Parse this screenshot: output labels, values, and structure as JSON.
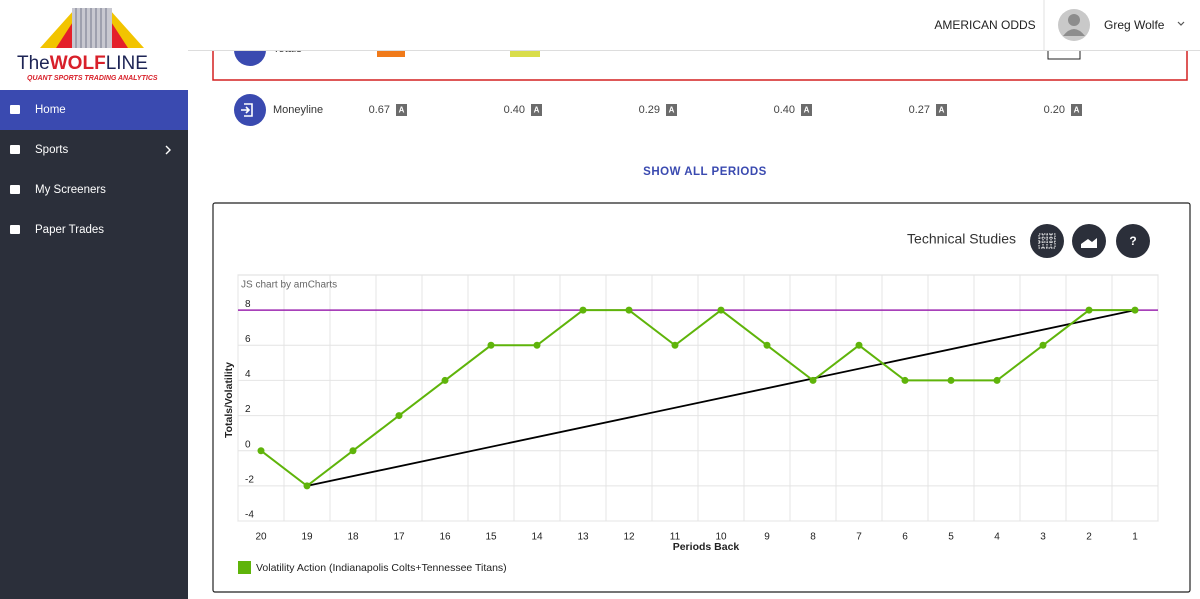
{
  "logo": {
    "prefix": "The",
    "brand": "WOLF",
    "suffix": "LINE",
    "tagline": "QUANT SPORTS TRADING ANALYTICS"
  },
  "sidebar": {
    "items": [
      {
        "label": "Home",
        "active": true
      },
      {
        "label": "Sports",
        "active": false
      },
      {
        "label": "My Screeners",
        "active": false
      },
      {
        "label": "Paper Trades",
        "active": false
      }
    ]
  },
  "topbar": {
    "odds_format": "AMERICAN ODDS",
    "user": "Greg Wolfe"
  },
  "table": {
    "badge": "A",
    "rows": [
      {
        "label": "Totals"
      },
      {
        "label": "Moneyline",
        "values": [
          "0.67",
          "0.40",
          "0.29",
          "0.40",
          "0.27",
          "0.20"
        ]
      }
    ]
  },
  "show_all": "SHOW ALL PERIODS",
  "panel": {
    "title": "Technical Studies",
    "help": "?",
    "watermark": "JS chart by amCharts"
  },
  "chart_data": {
    "type": "line",
    "y_label": "Totals/Volatility",
    "x_label": "Periods Back",
    "categories": [
      "20",
      "19",
      "18",
      "17",
      "16",
      "15",
      "14",
      "13",
      "12",
      "11",
      "10",
      "9",
      "8",
      "7",
      "6",
      "5",
      "4",
      "3",
      "2",
      "1"
    ],
    "series": [
      {
        "name": "Volatility Action (Indianapolis Colts+Tennessee Titans)",
        "color": "#5fb40a",
        "values": [
          0,
          -2,
          0,
          2,
          4,
          6,
          6,
          8,
          8,
          6,
          8,
          6,
          4,
          6,
          4,
          4,
          4,
          6,
          8,
          8
        ]
      }
    ],
    "hline": {
      "value": 8,
      "color": "#9c27b0"
    },
    "trend_line": {
      "categories": [
        "19",
        "1"
      ],
      "values": [
        -2,
        8
      ],
      "color": "#000000"
    },
    "ylim": [
      -4,
      10
    ],
    "yticks": [
      -4,
      -2,
      0,
      2,
      4,
      6,
      8
    ],
    "grid": true
  }
}
